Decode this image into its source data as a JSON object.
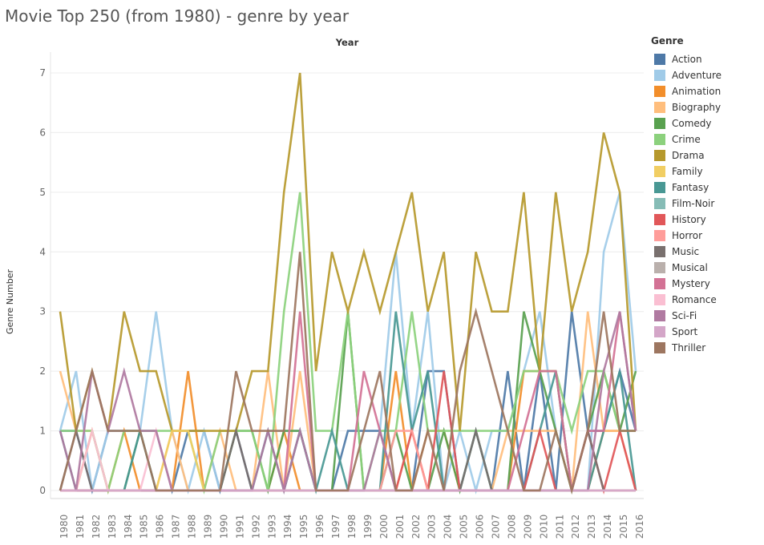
{
  "title": "Movie Top 250 (from 1980) - genre by year",
  "legend_title": "Genre",
  "legend_placement": "right",
  "chart_data": {
    "type": "line",
    "title": "Movie Top 250 (from 1980) - genre by year",
    "column_header": "Year",
    "xlabel": "",
    "ylabel": "Genre Number",
    "ylim": [
      0,
      7
    ],
    "y_ticks": [
      0,
      1,
      2,
      3,
      4,
      5,
      6,
      7
    ],
    "grid": true,
    "legend": "Genre",
    "x": [
      "1980",
      "1981",
      "1982",
      "1983",
      "1984",
      "1985",
      "1986",
      "1987",
      "1988",
      "1989",
      "1990",
      "1991",
      "1992",
      "1993",
      "1994",
      "1995",
      "1996",
      "1997",
      "1998",
      "1999",
      "2000",
      "2001",
      "2002",
      "2003",
      "2004",
      "2005",
      "2006",
      "2007",
      "2008",
      "2009",
      "2010",
      "2011",
      "2012",
      "2013",
      "2014",
      "2015",
      "2016"
    ],
    "series": [
      {
        "name": "Action",
        "color": "#4e79a7",
        "values": [
          1,
          1,
          0,
          1,
          1,
          1,
          1,
          0,
          1,
          1,
          0,
          1,
          0,
          0,
          0,
          1,
          0,
          0,
          1,
          1,
          1,
          0,
          0,
          2,
          2,
          0,
          0,
          0,
          2,
          0,
          2,
          0,
          3,
          1,
          1,
          2,
          1
        ]
      },
      {
        "name": "Adventure",
        "color": "#a0cbe8",
        "values": [
          1,
          2,
          0,
          1,
          1,
          1,
          3,
          1,
          0,
          1,
          0,
          0,
          0,
          1,
          1,
          1,
          0,
          0,
          0,
          0,
          1,
          4,
          1,
          3,
          0,
          1,
          0,
          1,
          1,
          2,
          3,
          1,
          0,
          0,
          4,
          5,
          2
        ]
      },
      {
        "name": "Animation",
        "color": "#f28e2b",
        "values": [
          0,
          0,
          1,
          0,
          1,
          0,
          0,
          0,
          2,
          0,
          0,
          0,
          0,
          0,
          1,
          0,
          0,
          0,
          0,
          0,
          0,
          2,
          0,
          1,
          1,
          0,
          0,
          0,
          0,
          2,
          2,
          2,
          0,
          0,
          1,
          1,
          1
        ]
      },
      {
        "name": "Biography",
        "color": "#ffbe7d",
        "values": [
          2,
          1,
          1,
          0,
          0,
          0,
          0,
          1,
          0,
          0,
          1,
          0,
          0,
          2,
          0,
          2,
          0,
          0,
          0,
          0,
          0,
          0,
          1,
          0,
          0,
          0,
          0,
          0,
          1,
          1,
          1,
          1,
          0,
          3,
          1,
          1,
          0
        ]
      },
      {
        "name": "Comedy",
        "color": "#59a14f",
        "values": [
          0,
          0,
          0,
          0,
          0,
          1,
          0,
          0,
          0,
          0,
          0,
          1,
          1,
          0,
          1,
          1,
          0,
          0,
          3,
          0,
          0,
          1,
          0,
          0,
          1,
          0,
          1,
          0,
          0,
          3,
          2,
          1,
          0,
          1,
          2,
          1,
          2
        ]
      },
      {
        "name": "Crime",
        "color": "#8cd17d",
        "values": [
          1,
          1,
          1,
          0,
          1,
          1,
          1,
          1,
          1,
          0,
          1,
          1,
          1,
          0,
          3,
          5,
          1,
          1,
          3,
          0,
          1,
          1,
          3,
          1,
          1,
          1,
          1,
          1,
          1,
          2,
          2,
          2,
          1,
          2,
          2,
          1,
          1
        ]
      },
      {
        "name": "Drama",
        "color": "#b6992d",
        "values": [
          3,
          1,
          2,
          1,
          3,
          2,
          2,
          1,
          1,
          1,
          1,
          1,
          2,
          2,
          5,
          7,
          2,
          4,
          3,
          4,
          3,
          4,
          5,
          3,
          4,
          1,
          4,
          3,
          3,
          5,
          2,
          5,
          3,
          4,
          6,
          5,
          1
        ]
      },
      {
        "name": "Family",
        "color": "#f1ce63",
        "values": [
          0,
          0,
          0,
          0,
          0,
          0,
          0,
          1,
          1,
          0,
          0,
          0,
          0,
          0,
          0,
          0,
          0,
          0,
          0,
          0,
          0,
          0,
          0,
          0,
          0,
          0,
          0,
          0,
          0,
          0,
          0,
          0,
          0,
          0,
          0,
          0,
          0
        ]
      },
      {
        "name": "Fantasy",
        "color": "#499894",
        "values": [
          1,
          0,
          0,
          0,
          0,
          1,
          0,
          0,
          0,
          0,
          0,
          0,
          0,
          1,
          0,
          1,
          0,
          1,
          0,
          0,
          0,
          3,
          1,
          2,
          0,
          0,
          1,
          0,
          0,
          0,
          1,
          2,
          0,
          0,
          1,
          2,
          0
        ]
      },
      {
        "name": "Film-Noir",
        "color": "#86bcb6",
        "values": [
          0,
          0,
          0,
          0,
          0,
          0,
          0,
          0,
          0,
          0,
          0,
          0,
          0,
          0,
          0,
          0,
          0,
          0,
          0,
          0,
          0,
          0,
          0,
          0,
          0,
          0,
          0,
          0,
          0,
          0,
          0,
          0,
          0,
          0,
          0,
          0,
          0
        ]
      },
      {
        "name": "History",
        "color": "#e15759",
        "values": [
          0,
          0,
          0,
          0,
          0,
          0,
          0,
          0,
          0,
          0,
          0,
          0,
          0,
          0,
          0,
          0,
          0,
          0,
          0,
          0,
          0,
          0,
          1,
          0,
          2,
          0,
          0,
          0,
          0,
          0,
          1,
          0,
          0,
          1,
          0,
          1,
          0
        ]
      },
      {
        "name": "Horror",
        "color": "#ff9d9a",
        "values": [
          0,
          0,
          0,
          0,
          0,
          0,
          0,
          0,
          0,
          0,
          0,
          0,
          0,
          0,
          0,
          0,
          0,
          0,
          0,
          0,
          0,
          1,
          1,
          0,
          0,
          0,
          0,
          0,
          0,
          0,
          0,
          0,
          0,
          0,
          0,
          0,
          0
        ]
      },
      {
        "name": "Music",
        "color": "#79706e",
        "values": [
          0,
          1,
          0,
          0,
          0,
          0,
          0,
          0,
          0,
          0,
          0,
          1,
          0,
          0,
          0,
          0,
          0,
          0,
          0,
          0,
          0,
          0,
          0,
          0,
          0,
          0,
          1,
          0,
          0,
          0,
          0,
          0,
          0,
          1,
          0,
          0,
          0
        ]
      },
      {
        "name": "Musical",
        "color": "#bab0ac",
        "values": [
          0,
          0,
          0,
          0,
          0,
          0,
          0,
          0,
          0,
          0,
          0,
          0,
          0,
          0,
          0,
          0,
          0,
          0,
          0,
          0,
          0,
          0,
          0,
          0,
          0,
          0,
          0,
          0,
          0,
          0,
          0,
          0,
          0,
          0,
          0,
          0,
          0
        ]
      },
      {
        "name": "Mystery",
        "color": "#d37295",
        "values": [
          0,
          0,
          0,
          0,
          0,
          0,
          0,
          0,
          0,
          0,
          0,
          0,
          0,
          0,
          0,
          3,
          0,
          0,
          0,
          2,
          1,
          0,
          0,
          0,
          0,
          0,
          0,
          0,
          0,
          1,
          2,
          2,
          0,
          1,
          1,
          3,
          1
        ]
      },
      {
        "name": "Romance",
        "color": "#fabfd2",
        "values": [
          0,
          0,
          1,
          0,
          0,
          0,
          1,
          0,
          0,
          0,
          0,
          0,
          0,
          0,
          0,
          0,
          0,
          0,
          0,
          0,
          0,
          0,
          0,
          0,
          0,
          0,
          0,
          0,
          0,
          0,
          0,
          0,
          0,
          0,
          0,
          0,
          0
        ]
      },
      {
        "name": "Sci-Fi",
        "color": "#b07aa1",
        "values": [
          1,
          0,
          2,
          1,
          2,
          1,
          1,
          0,
          0,
          0,
          0,
          0,
          0,
          1,
          0,
          1,
          0,
          0,
          0,
          0,
          1,
          0,
          0,
          0,
          0,
          0,
          0,
          0,
          0,
          0,
          0,
          0,
          0,
          0,
          2,
          3,
          1
        ]
      },
      {
        "name": "Sport",
        "color": "#d4a6c8",
        "values": [
          0,
          0,
          0,
          0,
          0,
          0,
          0,
          0,
          0,
          0,
          0,
          0,
          0,
          0,
          0,
          0,
          0,
          0,
          0,
          0,
          0,
          0,
          0,
          0,
          0,
          0,
          0,
          0,
          0,
          0,
          0,
          0,
          0,
          0,
          0,
          0,
          0
        ]
      },
      {
        "name": "Thriller",
        "color": "#9d7660",
        "values": [
          0,
          1,
          2,
          1,
          1,
          1,
          0,
          0,
          0,
          0,
          0,
          2,
          1,
          1,
          1,
          4,
          0,
          0,
          0,
          1,
          2,
          0,
          0,
          1,
          0,
          2,
          3,
          2,
          1,
          0,
          0,
          1,
          0,
          1,
          3,
          1,
          1
        ]
      }
    ]
  }
}
